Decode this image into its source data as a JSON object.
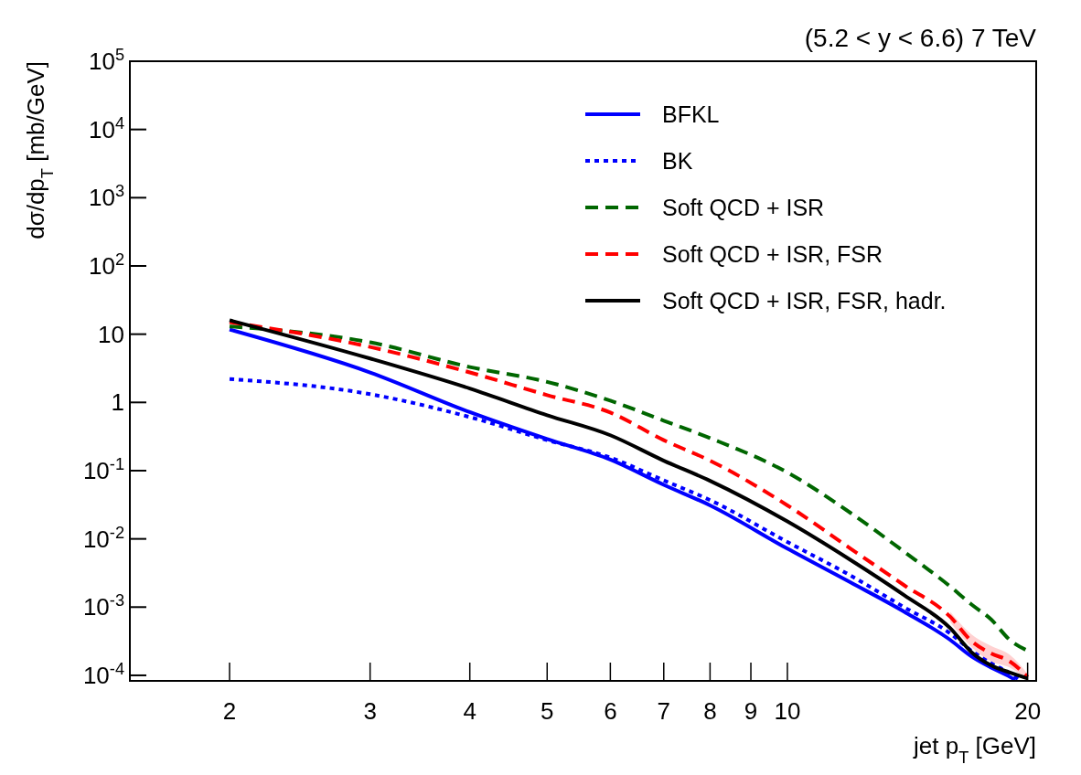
{
  "chart_data": {
    "type": "line",
    "title": "(5.2 < y < 6.6)  7 TeV",
    "xlabel": "jet p$_{T}$ [GeV]",
    "ylabel": "dσ/dp$_{T}$ [mb/GeV]",
    "log": "xy",
    "grid": false,
    "legend": "top right",
    "xlim": [
      1.5,
      20.5
    ],
    "xticks": [
      2,
      3,
      4,
      5,
      6,
      7,
      8,
      9,
      10,
      20
    ],
    "ylim": [
      8.3e-05,
      100000
    ],
    "yticks": [
      {
        "value": 0.0001,
        "label": "10$^{-4}$"
      },
      {
        "value": 0.001,
        "label": "10$^{-3}$"
      },
      {
        "value": 0.01,
        "label": "10$^{-2}$"
      },
      {
        "value": 0.1,
        "label": "10$^{-1}$"
      },
      1,
      10,
      {
        "value": 100,
        "label": "10$^{2}$"
      },
      {
        "value": 1000,
        "label": "10$^{3}$"
      },
      {
        "value": 10000,
        "label": "10$^{4}$"
      },
      {
        "value": 100000,
        "label": "10$^{5}$"
      }
    ],
    "series": [
      {
        "name": "BFKL",
        "color": "#0000ff",
        "line_style": "solid",
        "x": [
          2,
          3,
          4,
          5,
          6,
          7,
          8,
          10,
          12,
          14,
          16,
          17,
          18,
          19,
          19.3
        ],
        "values": [
          11.7,
          2.75,
          0.72,
          0.29,
          0.145,
          0.062,
          0.031,
          0.0072,
          0.0023,
          0.00086,
          0.00033,
          0.00019,
          0.00013,
          9.5e-05,
          8.5e-05
        ]
      },
      {
        "name": "BK",
        "color": "#0000ff",
        "line_style": "dotted",
        "x": [
          2,
          3,
          4,
          5,
          6,
          7,
          8,
          10,
          12,
          14,
          16,
          17,
          18,
          19,
          19.5
        ],
        "values": [
          2.2,
          1.32,
          0.61,
          0.28,
          0.155,
          0.072,
          0.037,
          0.009,
          0.0029,
          0.001,
          0.00041,
          0.00023,
          0.00015,
          0.000107,
          8.6e-05
        ]
      },
      {
        "name": "Soft QCD + ISR",
        "color": "#006600",
        "line_style": "dashed",
        "x": [
          2,
          3,
          4,
          5,
          6,
          7,
          8,
          10,
          12,
          14,
          16,
          17,
          18,
          19,
          20
        ],
        "values": [
          13,
          7.6,
          3.3,
          2.0,
          1.06,
          0.54,
          0.3,
          0.094,
          0.024,
          0.0065,
          0.002,
          0.0011,
          0.00066,
          0.00033,
          0.00023
        ]
      },
      {
        "name": "Soft QCD + ISR, FSR",
        "color": "#ff0000",
        "line_style": "dashed",
        "x": [
          2,
          3,
          4,
          5,
          6,
          7,
          8,
          10,
          12,
          14,
          16,
          17,
          18,
          19,
          20
        ],
        "values": [
          15,
          6.5,
          2.75,
          1.28,
          0.71,
          0.28,
          0.14,
          0.031,
          0.0072,
          0.0021,
          0.00072,
          0.00032,
          0.00021,
          0.00016,
          9.5e-05
        ],
        "lower": [
          null,
          null,
          null,
          null,
          null,
          null,
          null,
          null,
          null,
          null,
          0.0006,
          0.00026,
          0.00016,
          0.00013,
          8.5e-05
        ],
        "upper": [
          null,
          null,
          null,
          null,
          null,
          null,
          null,
          null,
          null,
          null,
          0.00085,
          0.0004,
          0.00027,
          0.0002,
          0.000105
        ]
      },
      {
        "name": "Soft QCD + ISR, FSR, hadr.",
        "color": "#000000",
        "line_style": "solid",
        "x": [
          2,
          3,
          4,
          5,
          6,
          7,
          8,
          10,
          12,
          14,
          16,
          17,
          18,
          19,
          20
        ],
        "values": [
          16,
          4.4,
          1.6,
          0.65,
          0.33,
          0.14,
          0.071,
          0.018,
          0.0049,
          0.0015,
          0.00049,
          0.00022,
          0.00014,
          0.00011,
          9e-05
        ]
      }
    ]
  }
}
